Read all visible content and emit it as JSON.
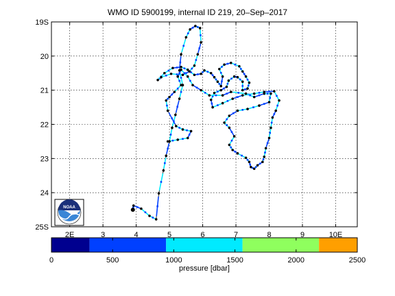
{
  "chart_data": {
    "type": "scatter",
    "title": "WMO ID 5900199, internal ID 219, 20–Sep–2017",
    "xlabel": "",
    "ylabel": "",
    "xlim": [
      1.45,
      10.65
    ],
    "ylim": [
      19.0,
      25.0
    ],
    "y_inverted": true,
    "grid": true,
    "x_ticks": [
      {
        "value": 2,
        "label": "2E"
      },
      {
        "value": 3,
        "label": "3"
      },
      {
        "value": 4,
        "label": "4"
      },
      {
        "value": 5,
        "label": "5"
      },
      {
        "value": 6,
        "label": "6"
      },
      {
        "value": 7,
        "label": "7"
      },
      {
        "value": 8,
        "label": "8"
      },
      {
        "value": 9,
        "label": "9"
      },
      {
        "value": 10,
        "label": "10E"
      }
    ],
    "y_ticks": [
      {
        "value": 19,
        "label": "19S"
      },
      {
        "value": 20,
        "label": "20"
      },
      {
        "value": 21,
        "label": "21"
      },
      {
        "value": 22,
        "label": "22"
      },
      {
        "value": 23,
        "label": "23"
      },
      {
        "value": 24,
        "label": "24"
      },
      {
        "value": 25,
        "label": "25S"
      }
    ],
    "track": [
      [
        3.9,
        24.5
      ],
      [
        3.92,
        24.38
      ],
      [
        4.15,
        24.47
      ],
      [
        4.4,
        24.68
      ],
      [
        4.6,
        24.78
      ],
      [
        4.68,
        24.02
      ],
      [
        4.82,
        23.35
      ],
      [
        4.9,
        22.92
      ],
      [
        5.0,
        22.5
      ],
      [
        5.08,
        22.1
      ],
      [
        5.18,
        21.72
      ],
      [
        5.3,
        21.25
      ],
      [
        5.4,
        20.85
      ],
      [
        5.3,
        20.42
      ],
      [
        5.35,
        19.95
      ],
      [
        5.5,
        19.45
      ],
      [
        5.62,
        19.22
      ],
      [
        5.78,
        19.12
      ],
      [
        5.92,
        19.18
      ],
      [
        5.95,
        19.6
      ],
      [
        5.85,
        19.95
      ],
      [
        5.75,
        20.28
      ],
      [
        5.6,
        20.45
      ],
      [
        5.4,
        20.55
      ],
      [
        5.05,
        20.52
      ],
      [
        4.75,
        20.62
      ],
      [
        4.65,
        20.7
      ],
      [
        4.85,
        20.5
      ],
      [
        5.1,
        20.35
      ],
      [
        5.35,
        20.32
      ],
      [
        5.55,
        20.4
      ],
      [
        5.75,
        20.55
      ],
      [
        5.95,
        20.52
      ],
      [
        6.05,
        20.42
      ],
      [
        6.25,
        20.5
      ],
      [
        6.35,
        20.62
      ],
      [
        6.45,
        20.75
      ],
      [
        6.55,
        20.88
      ],
      [
        6.6,
        20.6
      ],
      [
        6.5,
        20.38
      ],
      [
        6.65,
        20.25
      ],
      [
        6.85,
        20.2
      ],
      [
        7.1,
        20.3
      ],
      [
        7.2,
        20.45
      ],
      [
        7.3,
        20.6
      ],
      [
        7.4,
        20.78
      ],
      [
        7.35,
        20.95
      ],
      [
        7.2,
        21.0
      ],
      [
        7.2,
        20.75
      ],
      [
        7.05,
        20.62
      ],
      [
        6.95,
        20.6
      ],
      [
        6.78,
        20.72
      ],
      [
        6.72,
        20.9
      ],
      [
        6.55,
        21.0
      ],
      [
        6.35,
        21.08
      ],
      [
        6.25,
        21.28
      ],
      [
        6.3,
        21.5
      ],
      [
        6.6,
        21.38
      ],
      [
        6.9,
        21.25
      ],
      [
        7.2,
        21.15
      ],
      [
        7.55,
        21.1
      ],
      [
        7.85,
        21.05
      ],
      [
        8.15,
        21.03
      ],
      [
        8.3,
        21.3
      ],
      [
        8.2,
        21.6
      ],
      [
        8.1,
        21.8
      ],
      [
        8.05,
        22.1
      ],
      [
        8.0,
        22.4
      ],
      [
        7.9,
        22.7
      ],
      [
        7.85,
        22.95
      ],
      [
        7.8,
        23.1
      ],
      [
        7.65,
        23.2
      ],
      [
        7.55,
        23.3
      ],
      [
        7.45,
        23.25
      ],
      [
        7.4,
        23.1
      ],
      [
        7.3,
        22.98
      ],
      [
        7.05,
        22.85
      ],
      [
        6.9,
        22.75
      ],
      [
        6.8,
        22.6
      ],
      [
        6.95,
        22.35
      ],
      [
        6.8,
        22.1
      ],
      [
        6.65,
        21.95
      ],
      [
        6.8,
        21.75
      ],
      [
        7.05,
        21.6
      ],
      [
        7.35,
        21.55
      ],
      [
        7.7,
        21.45
      ],
      [
        8.0,
        21.35
      ],
      [
        8.05,
        21.1
      ],
      [
        7.85,
        21.1
      ],
      [
        7.55,
        21.2
      ],
      [
        7.3,
        21.1
      ],
      [
        6.85,
        21.05
      ],
      [
        6.6,
        21.15
      ],
      [
        6.2,
        21.15
      ],
      [
        5.95,
        21.0
      ],
      [
        5.7,
        20.85
      ],
      [
        5.55,
        20.6
      ],
      [
        5.35,
        20.4
      ],
      [
        5.25,
        20.6
      ],
      [
        5.35,
        20.85
      ],
      [
        5.15,
        21.05
      ],
      [
        5.0,
        21.2
      ],
      [
        4.9,
        21.3
      ],
      [
        4.95,
        21.6
      ],
      [
        5.2,
        22.05
      ],
      [
        5.4,
        22.15
      ],
      [
        5.65,
        22.2
      ],
      [
        5.55,
        22.4
      ],
      [
        5.25,
        22.45
      ],
      [
        4.95,
        22.5
      ]
    ],
    "track_legend": "",
    "colorbar": {
      "label": "pressure [dbar]",
      "min": 0,
      "max": 2500,
      "tick_values": [
        0,
        500,
        1000,
        1500,
        2000,
        2500
      ],
      "tick_labels": [
        "0",
        "500",
        "1000",
        "1500",
        "2000",
        "2500"
      ],
      "bins": [
        {
          "from": 0,
          "to": 312,
          "color": "#00008f"
        },
        {
          "from": 312,
          "to": 937,
          "color": "#0040ff"
        },
        {
          "from": 937,
          "to": 1562,
          "color": "#00eaff"
        },
        {
          "from": 1562,
          "to": 2187,
          "color": "#8fff5e"
        },
        {
          "from": 2187,
          "to": 2500,
          "color": "#ff9f00"
        }
      ]
    },
    "colors": {
      "line": "#000000",
      "profile": "#000000",
      "segment_high": "#00eaff",
      "segment_mid": "#0040ff",
      "grid": "#000000"
    }
  },
  "logo": {
    "text": "NOAA"
  }
}
